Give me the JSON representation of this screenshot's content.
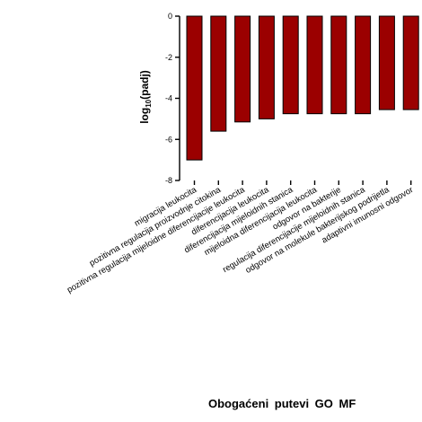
{
  "chart_data": {
    "type": "bar",
    "title": "Obogaćeni putevi GO MF",
    "ylabel_base": "log",
    "ylabel_sub": "10",
    "ylabel_rest": "(padj)",
    "ylim": [
      -8,
      0
    ],
    "yticks": [
      0,
      -2,
      -4,
      -6,
      -8
    ],
    "bar_color": "#9b0000",
    "categories": [
      "migracija leukocita",
      "pozitivna regulacija proizvodnje citokina",
      "pozitivna regulacija mijeloidne diferencijacije leukocita",
      "diferencijacija leukocita",
      "diferencijacija mijeloidnih stanica",
      "mijeloidna diferencijacija leukocita",
      "odgovor na bakterije",
      "regulacija diferencijacije mijeloidnih stanica",
      "odgovor na molekule bakterijskog podrijetla",
      "adaptivni imunosni odgovor"
    ],
    "values": [
      -7.0,
      -5.6,
      -5.15,
      -5.0,
      -4.75,
      -4.75,
      -4.75,
      -4.75,
      -4.55,
      -4.55
    ]
  }
}
